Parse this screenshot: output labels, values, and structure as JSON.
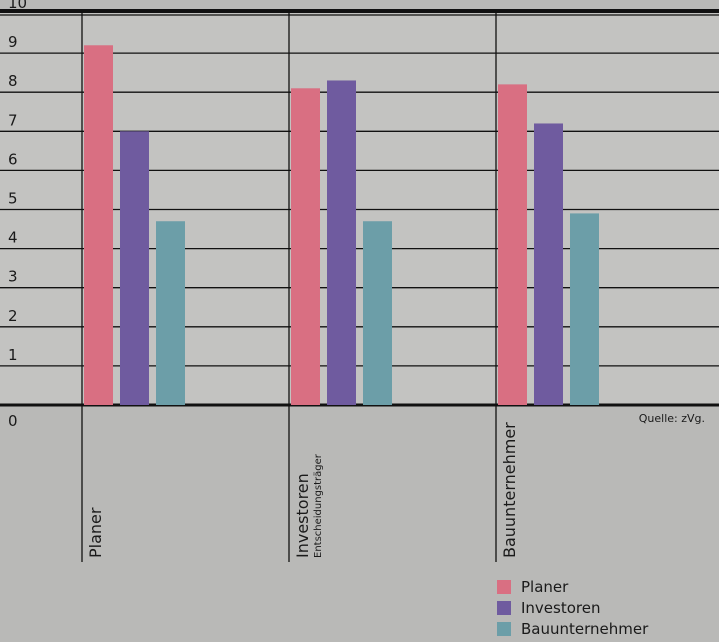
{
  "chart_data": {
    "type": "bar",
    "categories": [
      "Planer",
      "Investoren",
      "Bauunternehmer"
    ],
    "category_sublabels": [
      "",
      "Entscheidungsträger",
      ""
    ],
    "series": [
      {
        "name": "Planer",
        "color": "#d96f82",
        "values": [
          9.2,
          8.1,
          8.2
        ]
      },
      {
        "name": "Investoren",
        "color": "#6f5b9f",
        "values": [
          7.0,
          8.3,
          7.2
        ]
      },
      {
        "name": "Bauunternehmer",
        "color": "#6c9ea8",
        "values": [
          4.7,
          4.7,
          4.9
        ]
      }
    ],
    "ylim": [
      0,
      10
    ],
    "yticks": [
      "0",
      "1",
      "2",
      "3",
      "4",
      "5",
      "6",
      "7",
      "8",
      "9",
      "10"
    ],
    "grid": true,
    "legend_position": "bottom-right"
  },
  "source_note": "Quelle: zVg."
}
